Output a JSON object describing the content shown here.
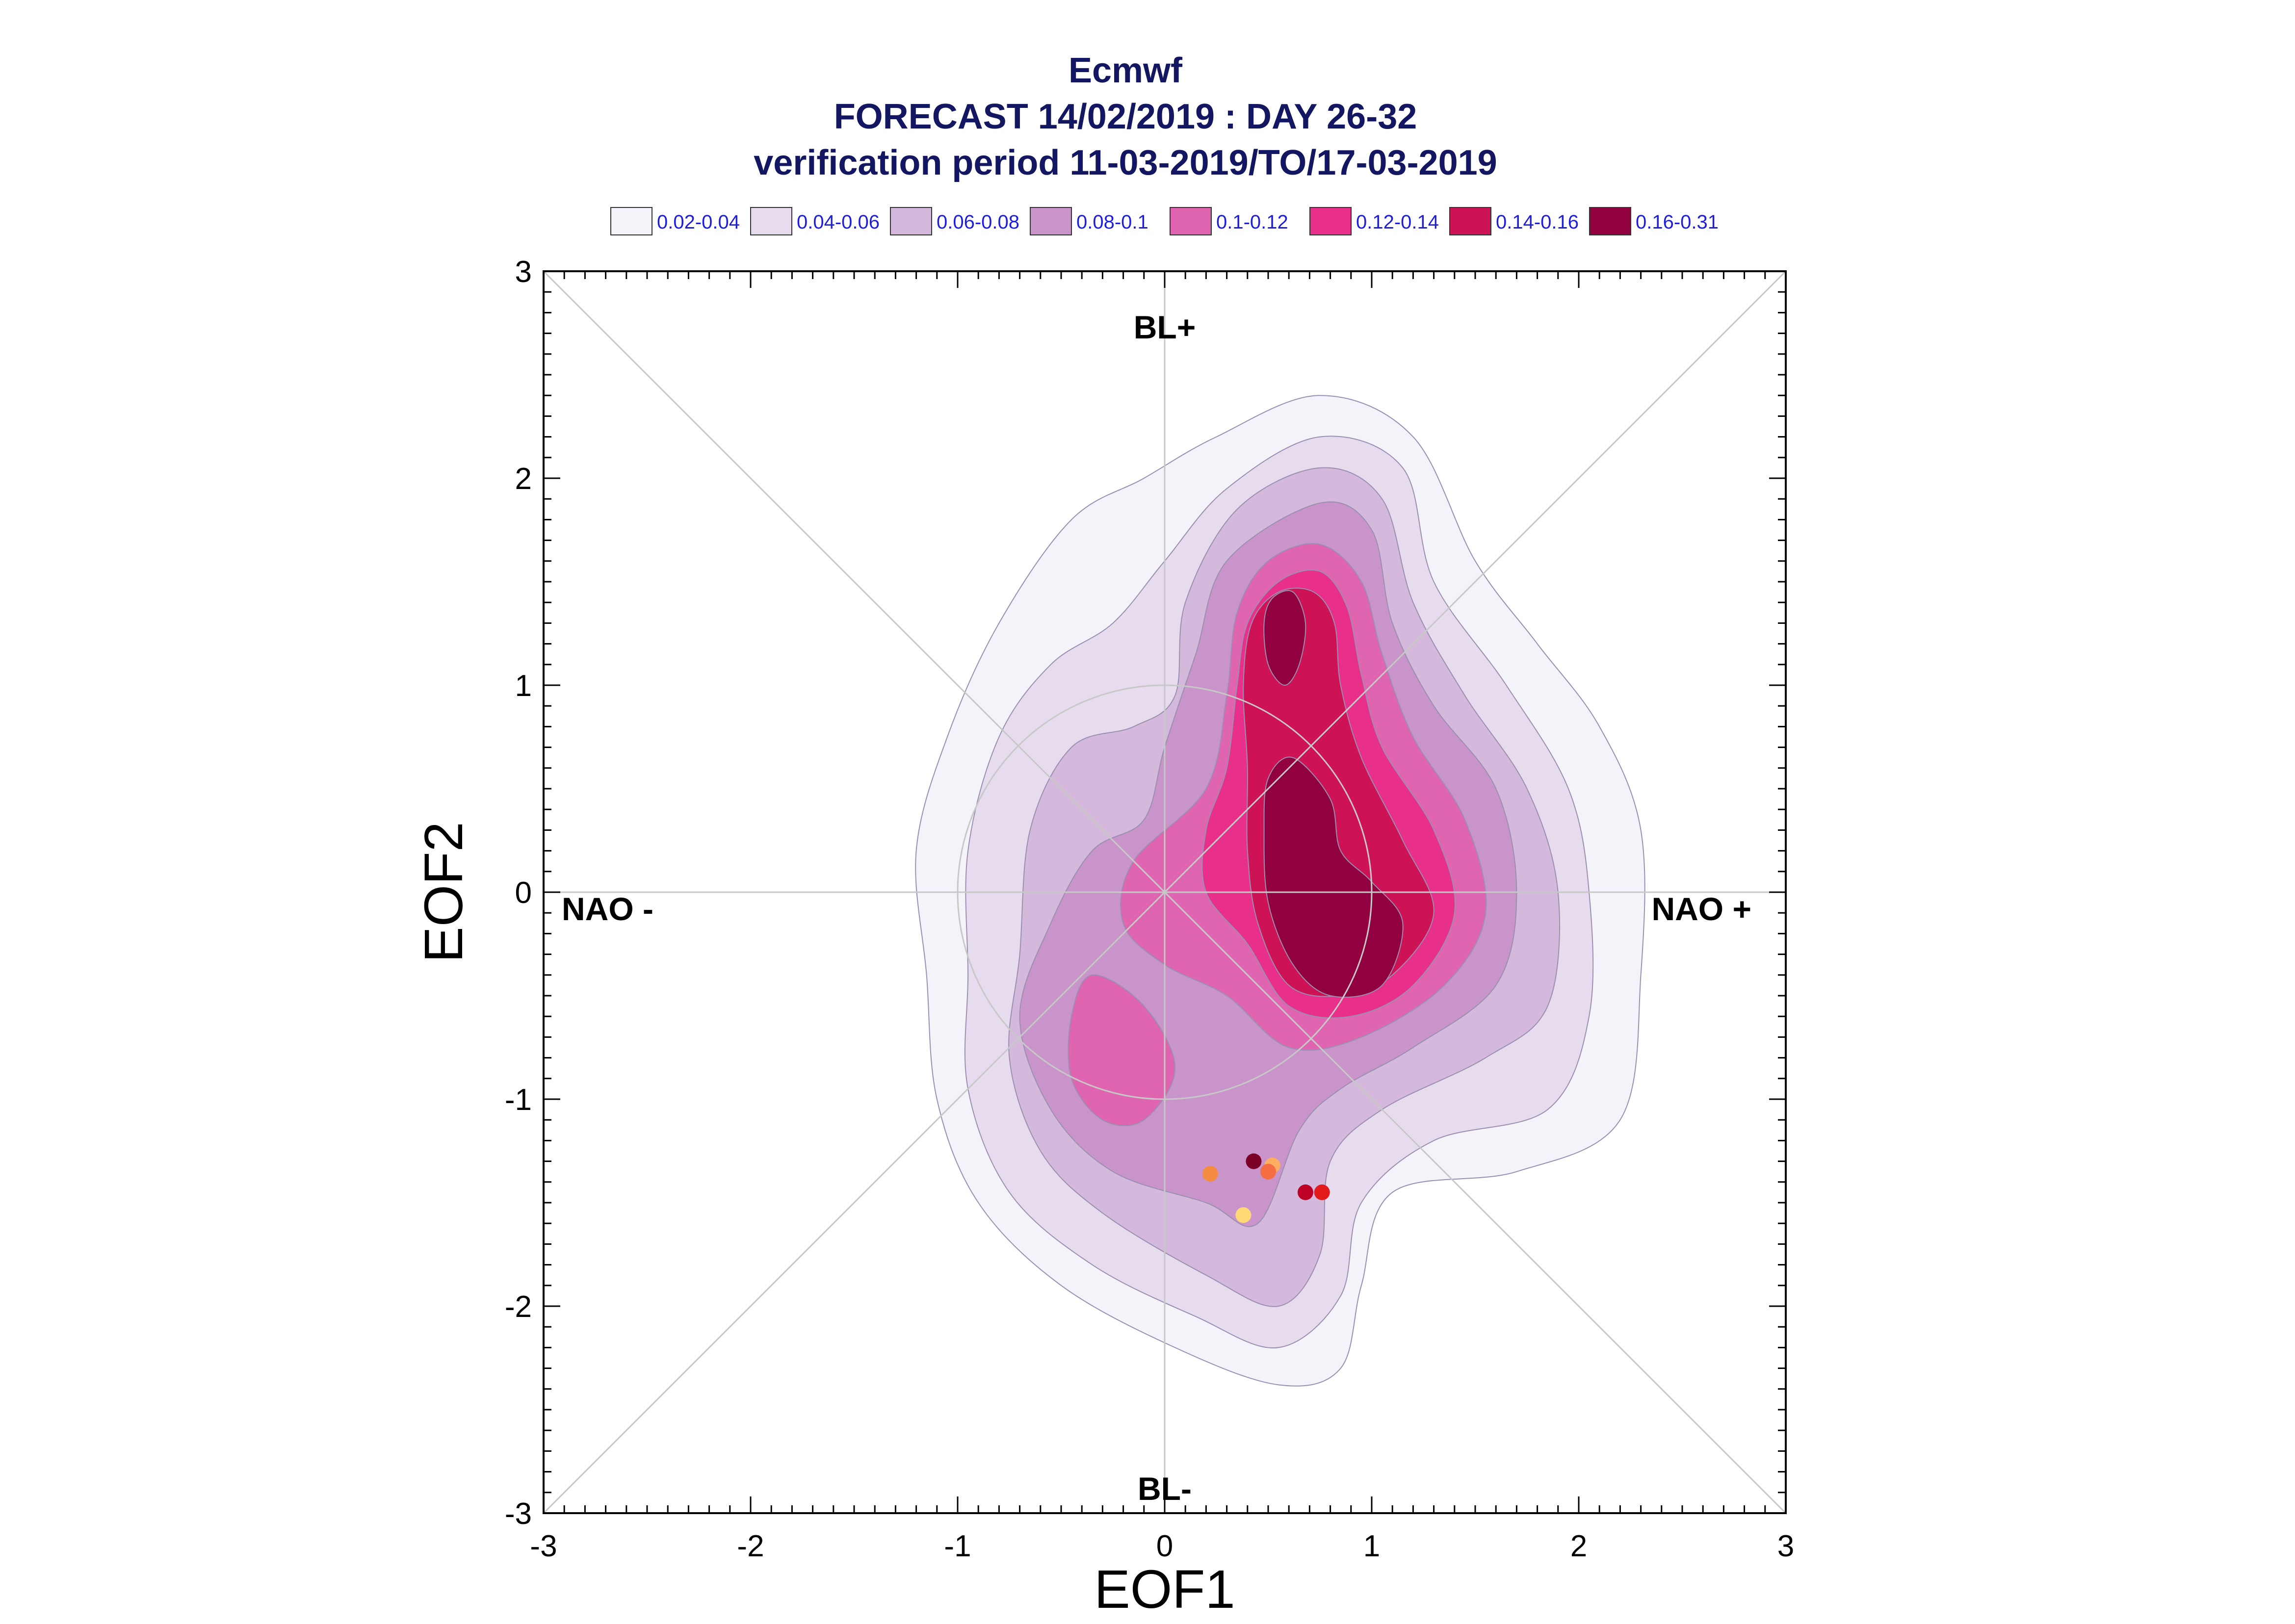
{
  "chart_data": {
    "type": "contour",
    "title": [
      "Ecmwf",
      "FORECAST 14/02/2019 : DAY 26-32",
      "verification period 11-03-2019/TO/17-03-2019"
    ],
    "xlabel": "EOF1",
    "ylabel": "EOF2",
    "xlim": [
      -3,
      3
    ],
    "ylim": [
      -3,
      3
    ],
    "x_ticks": [
      -3,
      -2,
      -1,
      0,
      1,
      2,
      3
    ],
    "y_ticks": [
      -3,
      -2,
      -1,
      0,
      1,
      2,
      3
    ],
    "regime_labels": {
      "top": "BL+",
      "bottom": "BL-",
      "left": "NAO -",
      "right": "NAO +"
    },
    "legend": [
      {
        "label": "0.02-0.04",
        "color": "#f5f3fa"
      },
      {
        "label": "0.04-0.06",
        "color": "#e6dcee"
      },
      {
        "label": "0.06-0.08",
        "color": "#d4b9dc"
      },
      {
        "label": "0.08-0.1",
        "color": "#c994c9"
      },
      {
        "label": "0.1-0.12",
        "color": "#df65b0"
      },
      {
        "label": "0.12-0.14",
        "color": "#e8308a"
      },
      {
        "label": "0.14-0.16",
        "color": "#ce1256"
      },
      {
        "label": "0.16-0.31",
        "color": "#91003f"
      }
    ],
    "density_levels": [
      {
        "level": "0.02-0.04",
        "polygons": [
          [
            [
              0.75,
              2.4
            ],
            [
              1.2,
              2.2
            ],
            [
              1.5,
              1.6
            ],
            [
              1.8,
              1.2
            ],
            [
              2.1,
              0.8
            ],
            [
              2.3,
              0.3
            ],
            [
              2.3,
              -0.4
            ],
            [
              2.2,
              -1.1
            ],
            [
              1.7,
              -1.35
            ],
            [
              1.1,
              -1.45
            ],
            [
              0.95,
              -1.9
            ],
            [
              0.85,
              -2.3
            ],
            [
              0.55,
              -2.38
            ],
            [
              0.05,
              -2.2
            ],
            [
              -0.5,
              -1.9
            ],
            [
              -0.9,
              -1.5
            ],
            [
              -1.1,
              -1.0
            ],
            [
              -1.15,
              -0.4
            ],
            [
              -1.2,
              0.2
            ],
            [
              -1.05,
              0.75
            ],
            [
              -0.8,
              1.3
            ],
            [
              -0.45,
              1.8
            ],
            [
              -0.1,
              2.0
            ],
            [
              0.25,
              2.2
            ]
          ]
        ]
      },
      {
        "level": "0.04-0.06",
        "polygons": [
          [
            [
              0.75,
              2.2
            ],
            [
              1.15,
              2.05
            ],
            [
              1.3,
              1.5
            ],
            [
              1.65,
              1.0
            ],
            [
              1.95,
              0.5
            ],
            [
              2.05,
              0.0
            ],
            [
              2.05,
              -0.6
            ],
            [
              1.85,
              -1.05
            ],
            [
              1.3,
              -1.2
            ],
            [
              0.95,
              -1.5
            ],
            [
              0.85,
              -1.95
            ],
            [
              0.55,
              -2.2
            ],
            [
              0.15,
              -2.05
            ],
            [
              -0.35,
              -1.8
            ],
            [
              -0.75,
              -1.45
            ],
            [
              -0.95,
              -0.95
            ],
            [
              -0.95,
              -0.4
            ],
            [
              -0.95,
              0.2
            ],
            [
              -0.8,
              0.75
            ],
            [
              -0.55,
              1.1
            ],
            [
              -0.25,
              1.3
            ],
            [
              0.0,
              1.6
            ],
            [
              0.3,
              1.95
            ]
          ]
        ]
      },
      {
        "level": "0.06-0.08",
        "polygons": [
          [
            [
              0.75,
              2.05
            ],
            [
              1.05,
              1.9
            ],
            [
              1.2,
              1.4
            ],
            [
              1.45,
              0.95
            ],
            [
              1.75,
              0.5
            ],
            [
              1.9,
              0.0
            ],
            [
              1.85,
              -0.55
            ],
            [
              1.55,
              -0.8
            ],
            [
              1.05,
              -1.05
            ],
            [
              0.8,
              -1.3
            ],
            [
              0.75,
              -1.75
            ],
            [
              0.55,
              -2.0
            ],
            [
              0.2,
              -1.85
            ],
            [
              -0.3,
              -1.55
            ],
            [
              -0.6,
              -1.25
            ],
            [
              -0.75,
              -0.8
            ],
            [
              -0.7,
              -0.3
            ],
            [
              -0.65,
              0.3
            ],
            [
              -0.45,
              0.7
            ],
            [
              -0.15,
              0.8
            ],
            [
              0.05,
              0.95
            ],
            [
              0.1,
              1.4
            ],
            [
              0.35,
              1.85
            ]
          ]
        ]
      },
      {
        "level": "0.08-0.1",
        "polygons": [
          [
            [
              0.75,
              1.88
            ],
            [
              1.0,
              1.75
            ],
            [
              1.1,
              1.3
            ],
            [
              1.3,
              0.9
            ],
            [
              1.6,
              0.5
            ],
            [
              1.7,
              0.0
            ],
            [
              1.6,
              -0.45
            ],
            [
              1.2,
              -0.75
            ],
            [
              0.85,
              -0.95
            ],
            [
              0.65,
              -1.15
            ],
            [
              0.45,
              -1.6
            ],
            [
              0.2,
              -1.5
            ],
            [
              -0.25,
              -1.35
            ],
            [
              -0.55,
              -1.05
            ],
            [
              -0.7,
              -0.6
            ],
            [
              -0.55,
              -0.15
            ],
            [
              -0.35,
              0.2
            ],
            [
              -0.1,
              0.35
            ],
            [
              0.0,
              0.7
            ],
            [
              0.15,
              1.15
            ],
            [
              0.3,
              1.6
            ]
          ]
        ]
      },
      {
        "level": "0.1-0.12",
        "polygons": [
          [
            [
              0.75,
              1.68
            ],
            [
              0.95,
              1.5
            ],
            [
              1.05,
              1.15
            ],
            [
              1.2,
              0.75
            ],
            [
              1.45,
              0.35
            ],
            [
              1.55,
              -0.1
            ],
            [
              1.35,
              -0.45
            ],
            [
              0.95,
              -0.7
            ],
            [
              0.6,
              -0.75
            ],
            [
              0.3,
              -0.5
            ],
            [
              0.0,
              -0.35
            ],
            [
              -0.2,
              -0.15
            ],
            [
              -0.15,
              0.15
            ],
            [
              0.2,
              0.5
            ],
            [
              0.3,
              0.95
            ],
            [
              0.35,
              1.35
            ],
            [
              0.5,
              1.6
            ]
          ],
          [
            [
              -0.35,
              -0.4
            ],
            [
              -0.1,
              -0.55
            ],
            [
              0.05,
              -0.85
            ],
            [
              -0.1,
              -1.1
            ],
            [
              -0.3,
              -1.1
            ],
            [
              -0.45,
              -0.9
            ],
            [
              -0.45,
              -0.6
            ]
          ]
        ]
      },
      {
        "level": "0.12-0.14",
        "polygons": [
          [
            [
              0.75,
              1.55
            ],
            [
              0.88,
              1.38
            ],
            [
              0.95,
              1.05
            ],
            [
              1.05,
              0.7
            ],
            [
              1.3,
              0.3
            ],
            [
              1.4,
              -0.1
            ],
            [
              1.2,
              -0.45
            ],
            [
              0.9,
              -0.6
            ],
            [
              0.6,
              -0.55
            ],
            [
              0.4,
              -0.25
            ],
            [
              0.2,
              0.0
            ],
            [
              0.2,
              0.3
            ],
            [
              0.3,
              0.6
            ],
            [
              0.35,
              1.0
            ],
            [
              0.4,
              1.3
            ],
            [
              0.55,
              1.5
            ]
          ]
        ]
      },
      {
        "level": "0.14-0.16",
        "polygons": [
          [
            [
              0.72,
              1.45
            ],
            [
              0.82,
              1.3
            ],
            [
              0.85,
              1.0
            ],
            [
              0.95,
              0.65
            ],
            [
              1.15,
              0.25
            ],
            [
              1.3,
              -0.1
            ],
            [
              1.1,
              -0.4
            ],
            [
              0.85,
              -0.5
            ],
            [
              0.6,
              -0.45
            ],
            [
              0.45,
              -0.15
            ],
            [
              0.4,
              0.2
            ],
            [
              0.4,
              0.6
            ],
            [
              0.38,
              1.0
            ],
            [
              0.42,
              1.3
            ],
            [
              0.55,
              1.45
            ]
          ]
        ]
      },
      {
        "level": "0.16-0.31",
        "polygons": [
          [
            [
              0.62,
              1.45
            ],
            [
              0.68,
              1.3
            ],
            [
              0.65,
              1.1
            ],
            [
              0.58,
              1.0
            ],
            [
              0.5,
              1.1
            ],
            [
              0.48,
              1.3
            ],
            [
              0.52,
              1.42
            ]
          ],
          [
            [
              0.62,
              0.65
            ],
            [
              0.8,
              0.45
            ],
            [
              0.85,
              0.2
            ],
            [
              1.0,
              0.05
            ],
            [
              1.15,
              -0.15
            ],
            [
              1.05,
              -0.45
            ],
            [
              0.8,
              -0.5
            ],
            [
              0.62,
              -0.35
            ],
            [
              0.5,
              -0.05
            ],
            [
              0.48,
              0.3
            ],
            [
              0.5,
              0.55
            ]
          ]
        ]
      }
    ],
    "points": [
      {
        "x": 0.43,
        "y": -1.3,
        "color": "#7a0026"
      },
      {
        "x": 0.52,
        "y": -1.32,
        "color": "#fdae61"
      },
      {
        "x": 0.5,
        "y": -1.35,
        "color": "#f46d43"
      },
      {
        "x": 0.22,
        "y": -1.36,
        "color": "#f48c42"
      },
      {
        "x": 0.68,
        "y": -1.45,
        "color": "#bd0026"
      },
      {
        "x": 0.76,
        "y": -1.45,
        "color": "#e31a1c"
      },
      {
        "x": 0.38,
        "y": -1.56,
        "color": "#fed976"
      }
    ]
  }
}
